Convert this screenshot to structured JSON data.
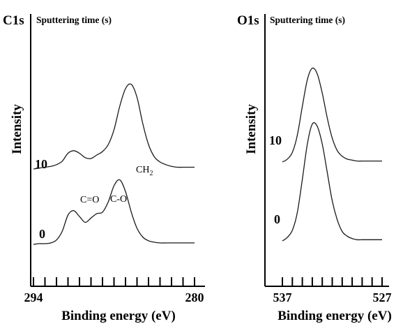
{
  "chart_data": [
    {
      "type": "line",
      "panel_label": "C1s",
      "legend_title": "Sputtering time (s)",
      "xlabel": "Binding energy (eV)",
      "ylabel": "Intensity",
      "xlim": [
        294,
        280
      ],
      "x_tick_labels": [
        "294",
        "280"
      ],
      "x_minor_ticks": [
        294,
        293,
        292,
        291,
        290,
        289,
        288,
        287,
        286,
        285,
        284,
        283,
        282,
        281,
        280
      ],
      "grid": false,
      "series": [
        {
          "name": "10",
          "x": [
            294,
            293.5,
            293,
            292.5,
            292,
            291.5,
            291,
            290.5,
            290,
            289.5,
            289,
            288.5,
            288,
            287.5,
            287,
            286.5,
            286,
            285.5,
            285,
            284.5,
            284,
            283.5,
            283,
            282.5,
            282,
            281.5,
            281,
            280.5,
            280
          ],
          "y": [
            0.0,
            0.01,
            0.02,
            0.03,
            0.05,
            0.09,
            0.18,
            0.21,
            0.18,
            0.13,
            0.12,
            0.16,
            0.2,
            0.28,
            0.45,
            0.72,
            0.92,
            0.97,
            0.82,
            0.52,
            0.28,
            0.14,
            0.08,
            0.05,
            0.03,
            0.02,
            0.02,
            0.02,
            0.02
          ]
        },
        {
          "name": "0",
          "x": [
            294,
            293.5,
            293,
            292.5,
            292,
            291.5,
            291,
            290.5,
            290,
            289.5,
            289,
            288.5,
            288,
            287.5,
            287,
            286.5,
            286,
            285.5,
            285,
            284.5,
            284,
            283.5,
            283,
            282.5,
            282,
            281.5,
            281,
            280.5,
            280
          ],
          "y": [
            0.0,
            0.01,
            0.01,
            0.02,
            0.06,
            0.18,
            0.4,
            0.46,
            0.38,
            0.3,
            0.36,
            0.42,
            0.44,
            0.58,
            0.8,
            0.88,
            0.72,
            0.44,
            0.22,
            0.1,
            0.05,
            0.03,
            0.02,
            0.02,
            0.02,
            0.02,
            0.02,
            0.02,
            0.02
          ]
        }
      ],
      "annotations": [
        {
          "text": "C=O",
          "x": 290.6
        },
        {
          "text": "C-O",
          "x": 288.4
        },
        {
          "text": "CH",
          "sub": "2",
          "x": 286.2
        }
      ]
    },
    {
      "type": "line",
      "panel_label": "O1s",
      "legend_title": "Sputtering time (s)",
      "xlabel": "Binding energy (eV)",
      "ylabel": "Intensity",
      "xlim": [
        537,
        527
      ],
      "x_tick_labels": [
        "537",
        "527"
      ],
      "x_minor_ticks": [
        537,
        536,
        535,
        534,
        533,
        532,
        531,
        530,
        529,
        528,
        527
      ],
      "grid": false,
      "series": [
        {
          "name": "10",
          "x": [
            537,
            536.5,
            536,
            535.5,
            535,
            534.5,
            534,
            533.5,
            533,
            532.5,
            532,
            531.5,
            531,
            530.5,
            530,
            529.5,
            529,
            528.5,
            528,
            527.5,
            527
          ],
          "y": [
            0.0,
            0.03,
            0.1,
            0.28,
            0.58,
            0.86,
            0.98,
            0.92,
            0.72,
            0.46,
            0.25,
            0.12,
            0.06,
            0.03,
            0.02,
            0.01,
            0.01,
            0.01,
            0.01,
            0.01,
            0.01
          ]
        },
        {
          "name": "0",
          "x": [
            537,
            536.5,
            536,
            535.5,
            535,
            534.5,
            534,
            533.5,
            533,
            532.5,
            532,
            531.5,
            531,
            530.5,
            530,
            529.5,
            529,
            528.5,
            528,
            527.5,
            527
          ],
          "y": [
            0.0,
            0.03,
            0.09,
            0.24,
            0.52,
            0.82,
            0.99,
            0.97,
            0.82,
            0.58,
            0.34,
            0.18,
            0.08,
            0.04,
            0.02,
            0.01,
            0.01,
            0.01,
            0.01,
            0.01,
            0.01
          ]
        }
      ]
    }
  ]
}
